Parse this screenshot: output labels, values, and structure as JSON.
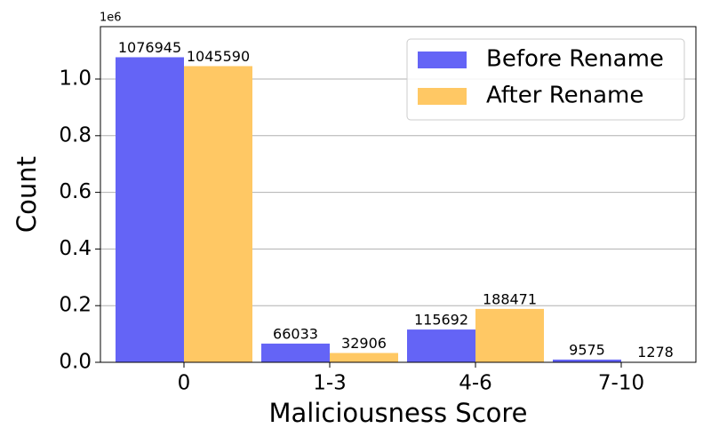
{
  "chart_data": {
    "type": "bar",
    "xlabel": "Maliciousness Score",
    "ylabel": "Count",
    "y_offset_label": "1e6",
    "categories": [
      "0",
      "1-3",
      "4-6",
      "7-10"
    ],
    "series": [
      {
        "name": "Before Rename",
        "color": "#6464f6",
        "values": [
          1076945,
          66033,
          115692,
          9575
        ]
      },
      {
        "name": "After Rename",
        "color": "#ffc864",
        "values": [
          1045590,
          32906,
          188471,
          1278
        ]
      }
    ],
    "ylim": [
      0,
      1185000
    ],
    "yticks": [
      {
        "value": 0,
        "label": "0.0"
      },
      {
        "value": 200000,
        "label": "0.2"
      },
      {
        "value": 400000,
        "label": "0.4"
      },
      {
        "value": 600000,
        "label": "0.6"
      },
      {
        "value": 800000,
        "label": "0.8"
      },
      {
        "value": 1000000,
        "label": "1.0"
      }
    ],
    "grid": true,
    "legend": "upper right"
  }
}
